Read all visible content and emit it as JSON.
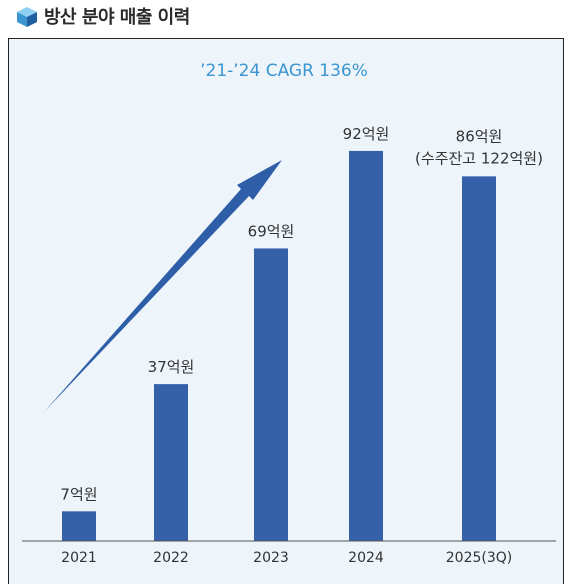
{
  "header": {
    "title": "방산 분야 매출 이력",
    "icon": "stacked-cube-icon"
  },
  "colors": {
    "bar": "#3561ab",
    "panel_bg": "#edf5fb",
    "cagr_text": "#3a95d1",
    "text": "#333333"
  },
  "chart_data": {
    "type": "bar",
    "title": "’21-’24 CAGR 136%",
    "categories": [
      "2021",
      "2022",
      "2023",
      "2024",
      "2025(3Q)"
    ],
    "values": [
      7,
      37,
      69,
      92,
      86
    ],
    "data_labels": [
      "7억원",
      "37억원",
      "69억원",
      "92억원",
      "86억원"
    ],
    "extra_label": "(수주잔고 122억원)",
    "unit": "억원",
    "ylim": [
      0,
      100
    ],
    "grid": false,
    "legend": "none"
  }
}
